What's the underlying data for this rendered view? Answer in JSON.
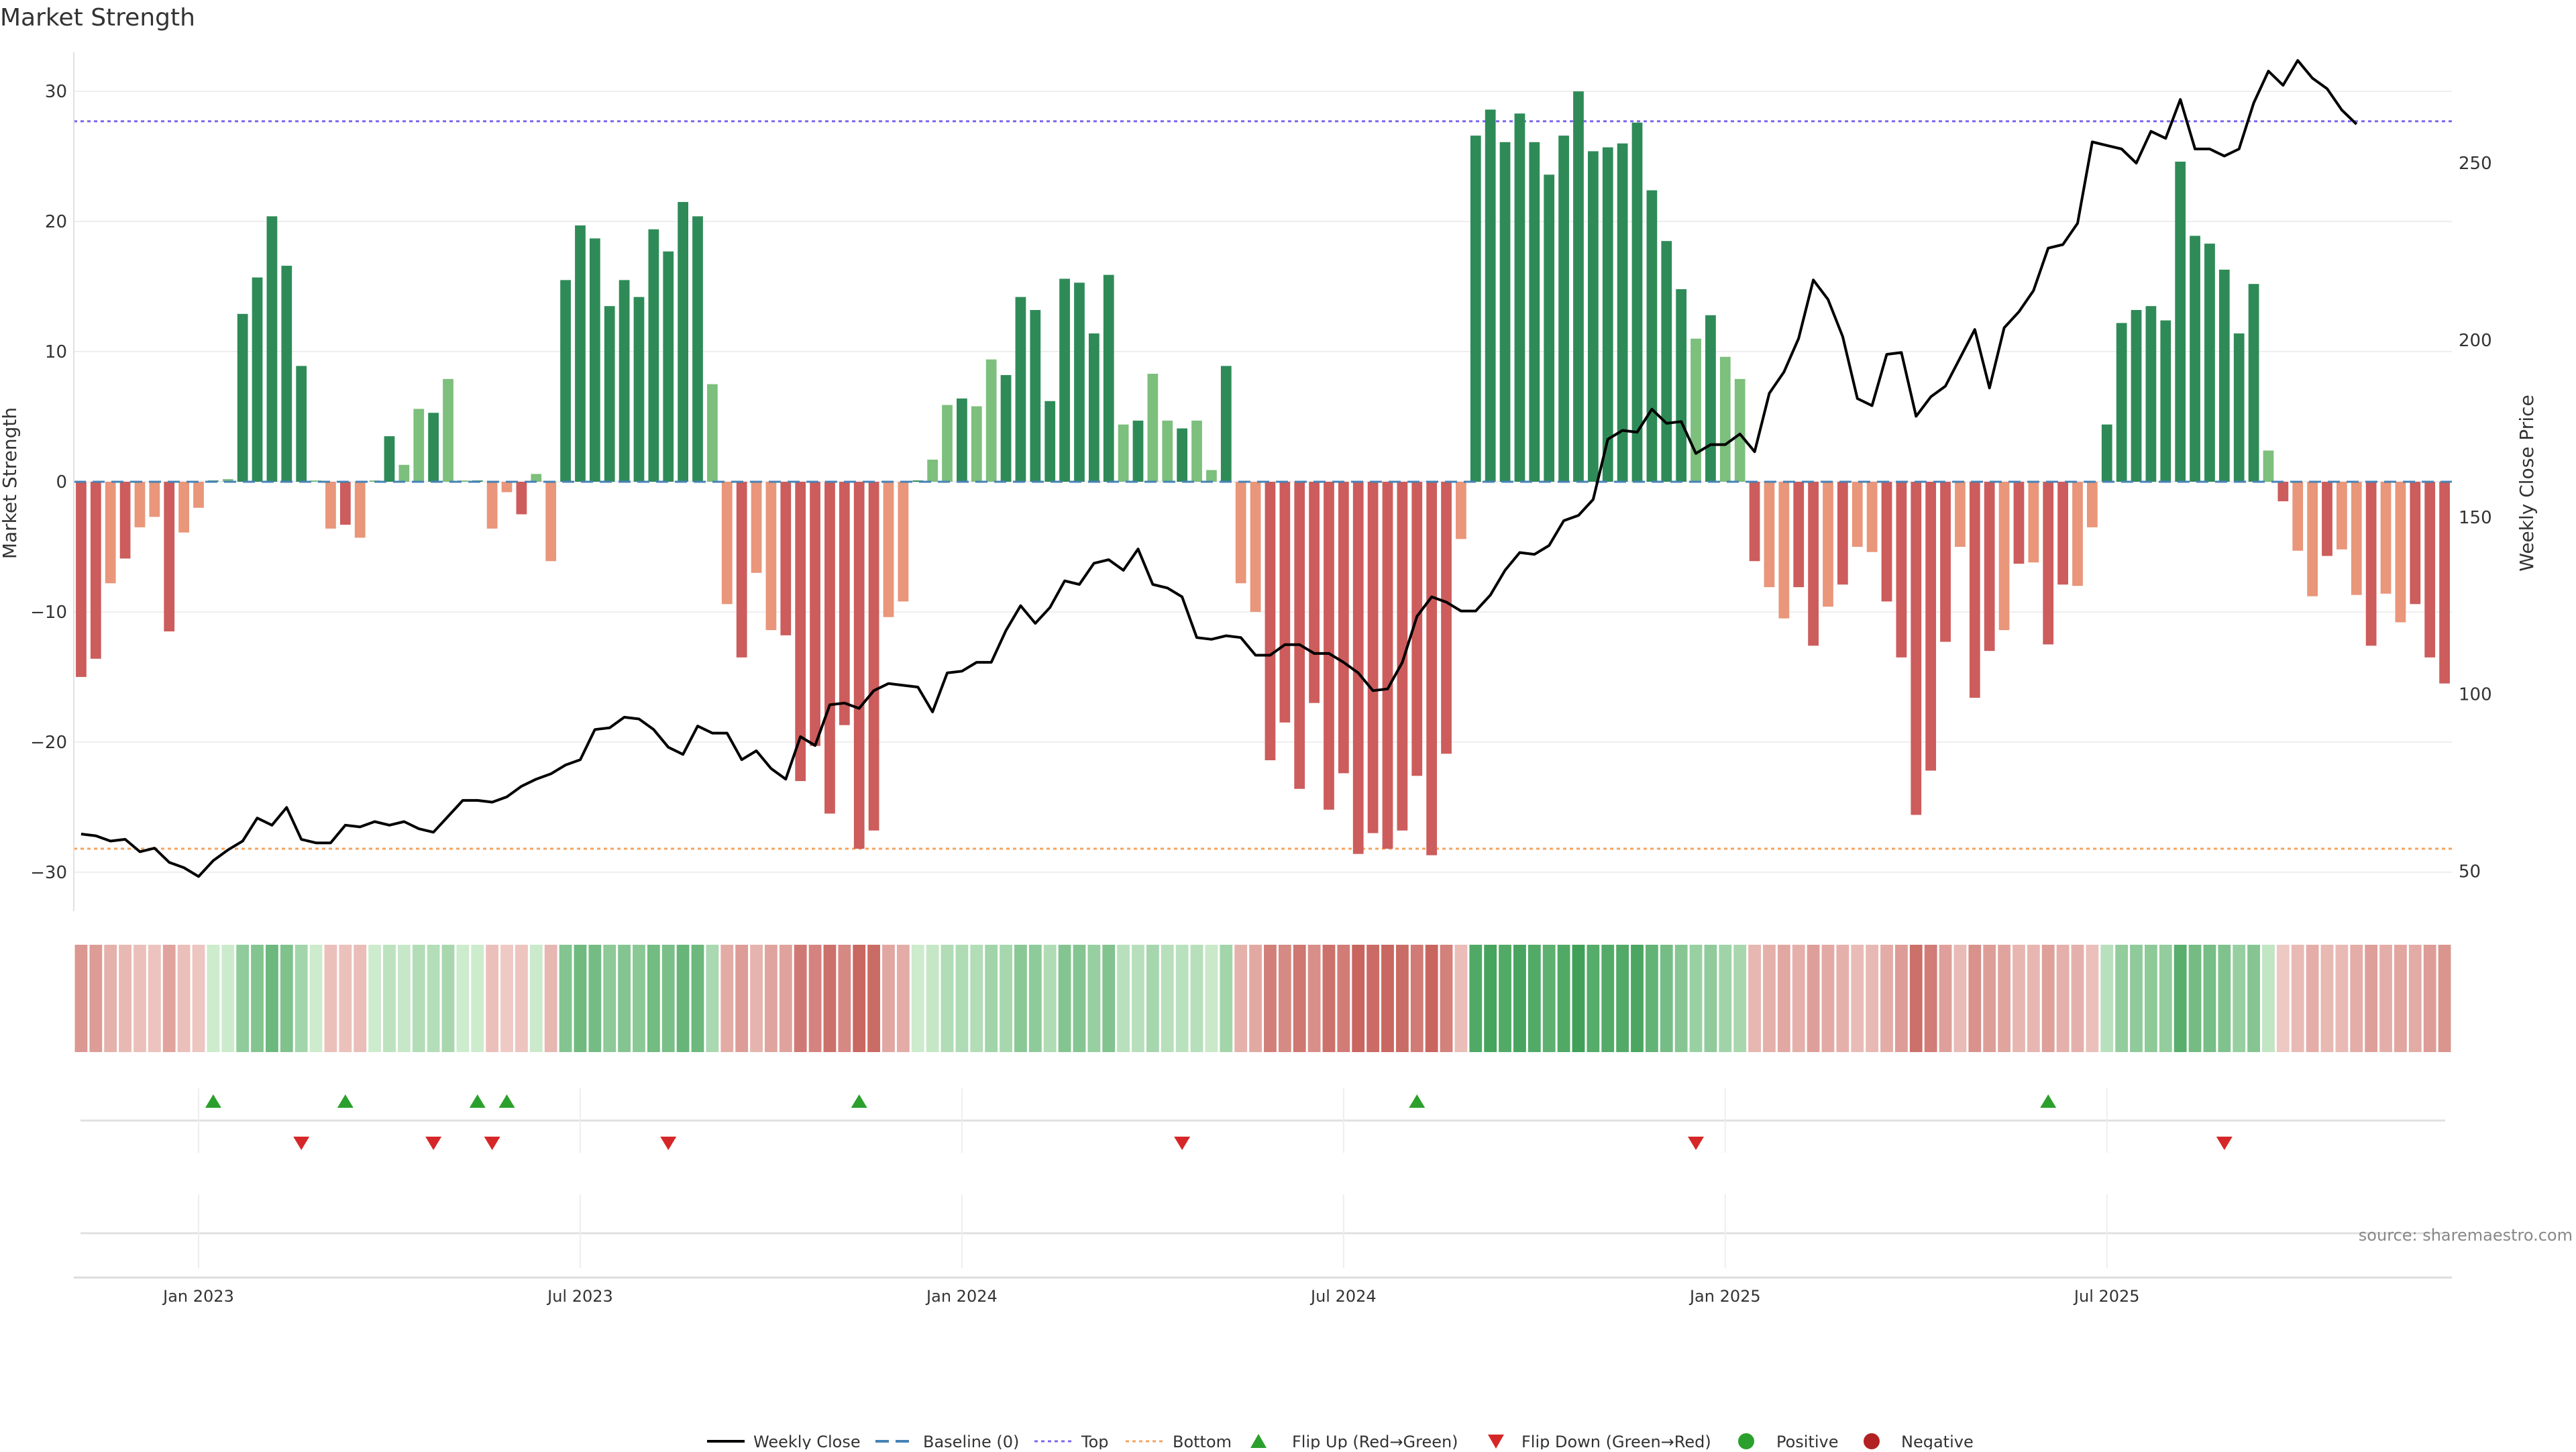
{
  "colors": {
    "strong_green": "#2e8b57",
    "light_green": "#7dbf7d",
    "strong_red": "#cd5c5c",
    "light_red": "#e9967a",
    "top_line": "#7b68ee",
    "bottom_line": "#f4a460",
    "baseline": "#4682b4",
    "flip_up": "#2ca02c",
    "flip_down": "#d62728",
    "positive_dot": "#2ca02c",
    "negative_dot": "#b22222",
    "price_line": "#000000"
  },
  "chart_data": {
    "type": "bar",
    "title": "Market Strength",
    "ylabel": "Market Strength",
    "y2label": "Weekly Close Price",
    "ylim": [
      -33,
      33
    ],
    "y2lim": [
      38.7,
      281.3
    ],
    "yticks": [
      -30,
      -20,
      -10,
      0,
      10,
      20,
      30
    ],
    "yticklabels": [
      "−30",
      "−20",
      "−10",
      "0",
      "10",
      "20",
      "30"
    ],
    "y2ticks": [
      50,
      100,
      150,
      200,
      250
    ],
    "y2ticklabels": [
      "50",
      "100",
      "150",
      "200",
      "250"
    ],
    "top_level": 27.7,
    "bottom_level": -28.2,
    "baseline": 0,
    "xticks": [
      {
        "week": 8,
        "label": "Jan 2023"
      },
      {
        "week": 34,
        "label": "Jul 2023"
      },
      {
        "week": 60,
        "label": "Jan 2024"
      },
      {
        "week": 86,
        "label": "Jul 2024"
      },
      {
        "week": 112,
        "label": "Jan 2025"
      },
      {
        "week": 138,
        "label": "Jul 2025"
      }
    ],
    "strength": [
      -15.0,
      -13.6,
      -7.8,
      -5.9,
      -3.5,
      -2.7,
      -11.5,
      -3.9,
      -2.0,
      0.1,
      0.2,
      12.9,
      15.7,
      20.4,
      16.6,
      8.9,
      0.1,
      -3.6,
      -3.3,
      -4.3,
      0.1,
      3.5,
      1.3,
      5.6,
      5.3,
      7.9,
      0.1,
      0.1,
      -3.6,
      -0.8,
      -2.5,
      0.6,
      -6.1,
      15.5,
      19.7,
      18.7,
      13.5,
      15.5,
      14.2,
      19.4,
      17.7,
      21.5,
      20.4,
      7.5,
      -9.4,
      -13.5,
      -7.0,
      -11.4,
      -11.8,
      -23.0,
      -20.3,
      -25.5,
      -18.7,
      -28.2,
      -26.8,
      -10.4,
      -9.2,
      0.1,
      1.7,
      5.9,
      6.4,
      5.8,
      9.4,
      8.2,
      14.2,
      13.2,
      6.2,
      15.6,
      15.3,
      11.4,
      15.9,
      4.4,
      4.7,
      8.3,
      4.7,
      4.1,
      4.7,
      0.9,
      8.9,
      -7.8,
      -10.0,
      -21.4,
      -18.5,
      -23.6,
      -17.0,
      -25.2,
      -22.4,
      -28.6,
      -27.0,
      -28.2,
      -26.8,
      -22.6,
      -28.7,
      -20.9,
      -4.4,
      26.6,
      28.6,
      26.1,
      28.3,
      26.1,
      23.6,
      26.6,
      30.0,
      25.4,
      25.7,
      26.0,
      27.6,
      22.4,
      18.5,
      14.8,
      11.0,
      12.8,
      9.6,
      7.9,
      -6.1,
      -8.1,
      -10.5,
      -8.1,
      -12.6,
      -9.6,
      -7.9,
      -5.0,
      -5.4,
      -9.2,
      -13.5,
      -25.6,
      -22.2,
      -12.3,
      -5.0,
      -16.6,
      -13.0,
      -11.4,
      -6.3,
      -6.2,
      -12.5,
      -7.9,
      -8.0,
      -3.5,
      4.4,
      12.2,
      13.2,
      13.5,
      12.4,
      24.6,
      18.9,
      18.3,
      16.3,
      11.4,
      15.2,
      2.4,
      -1.5,
      -5.3,
      -8.8,
      -5.7,
      -5.2,
      -8.7,
      -12.6,
      -8.6,
      -10.8,
      -9.4,
      -13.5,
      -15.5
    ],
    "close": [
      60.5,
      60,
      58.5,
      59,
      55.5,
      56.5,
      52.5,
      51,
      48.5,
      53,
      56,
      58.5,
      65,
      63,
      68,
      59,
      58,
      58,
      63,
      62.5,
      64,
      63,
      64,
      62,
      61,
      65.5,
      70,
      70,
      69.5,
      71,
      74,
      76,
      77.5,
      80,
      81.5,
      90,
      90.5,
      93.5,
      93,
      90,
      85,
      83,
      91,
      89,
      89,
      81.5,
      84,
      79,
      76,
      88,
      85.5,
      97,
      97.5,
      96,
      101,
      103,
      102.5,
      102,
      95,
      106,
      106.5,
      109,
      109,
      118,
      125,
      120,
      124.5,
      132,
      131,
      137,
      138,
      135,
      141,
      131,
      130,
      127.5,
      116,
      115.5,
      116.5,
      116,
      111,
      111,
      114,
      114,
      111.5,
      111.5,
      109,
      106,
      101,
      101.5,
      109,
      122,
      127.5,
      126,
      123.5,
      123.5,
      128,
      135,
      140,
      139.5,
      142,
      149,
      150.5,
      155,
      172,
      174.5,
      174,
      180.5,
      176.5,
      177,
      168,
      170.5,
      170.5,
      173.5,
      168.5,
      185,
      191,
      200.5,
      217,
      211.5,
      201,
      183.5,
      181.5,
      196,
      196.5,
      178.5,
      184,
      187,
      195,
      203,
      186.5,
      203.5,
      208,
      214,
      226,
      227,
      233,
      256,
      255,
      254,
      250,
      259,
      257,
      268,
      254,
      254,
      252,
      254,
      267,
      276,
      272,
      279,
      274,
      271,
      265,
      261
    ],
    "flip_up_weeks": [
      9,
      18,
      27,
      29,
      53,
      91,
      134
    ],
    "flip_down_weeks": [
      15,
      24,
      28,
      40,
      75,
      110,
      146
    ]
  },
  "annotation": {
    "source": "source: sharemaestro.com"
  },
  "legend": {
    "weekly_close": "Weekly Close",
    "baseline": "Baseline (0)",
    "top": "Top",
    "bottom": "Bottom",
    "flip_up": "Flip Up (Red→Green)",
    "flip_down": "Flip Down (Green→Red)",
    "positive": "Positive",
    "negative": "Negative"
  }
}
